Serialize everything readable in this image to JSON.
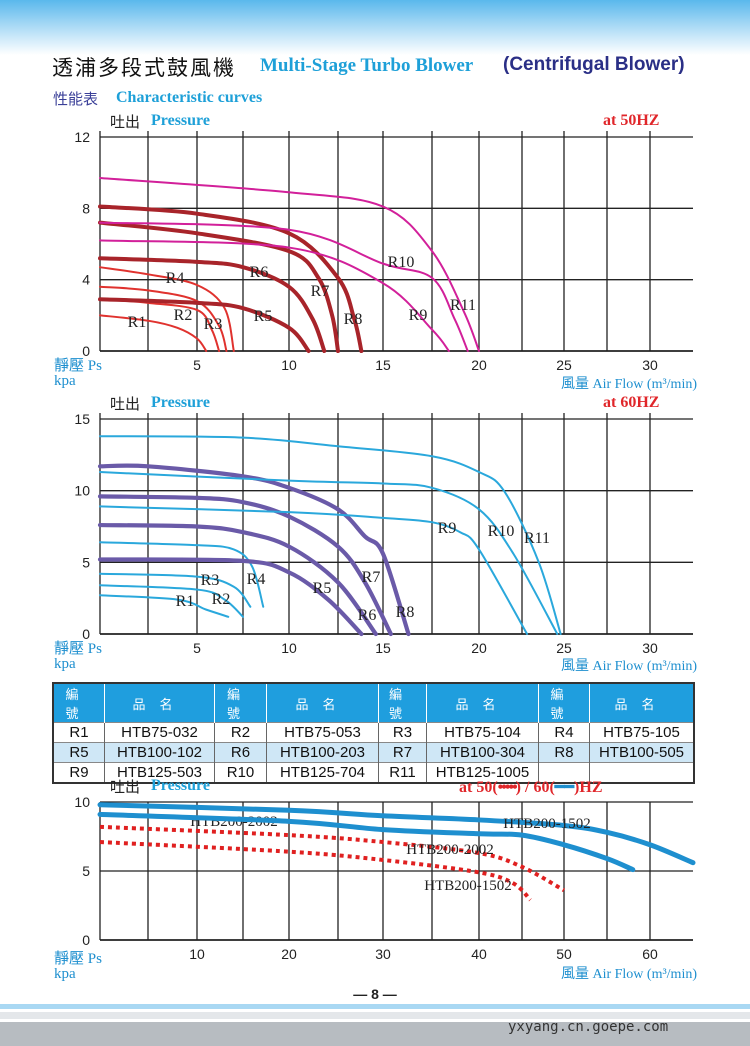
{
  "header": {
    "title_cn": "透浦多段式鼓風機",
    "title_en": "Multi-Stage Turbo Blower",
    "title_en2": "(Centrifugal Blower)",
    "subtitle_cn": "性能表",
    "subtitle_en": "Characteristic curves"
  },
  "axis_text": {
    "pressure_cn": "吐出",
    "pressure_en": "Pressure",
    "ps": "靜壓 Ps",
    "kpa": "kpa",
    "flow": "風量  Air Flow (m³/min)"
  },
  "chart_data": [
    {
      "type": "line",
      "title": "at 50HZ",
      "xlabel": "風量 Air Flow (m³/min)",
      "ylabel": "吐出 Pressure / 靜壓 Ps kpa",
      "xlim": [
        0,
        32.5
      ],
      "ylim": [
        0,
        12
      ],
      "xticks": [
        5,
        10,
        15,
        20,
        25,
        30
      ],
      "yticks": [
        0,
        4,
        8,
        12
      ],
      "grid": true,
      "series": [
        {
          "name": "R1",
          "color": "#e0322e",
          "weight": "thin",
          "points": [
            [
              0,
              2.0
            ],
            [
              2.5,
              1.7
            ],
            [
              4,
              1.3
            ],
            [
              5,
              0.7
            ],
            [
              5.5,
              0
            ]
          ]
        },
        {
          "name": "R2",
          "color": "#e0322e",
          "weight": "thin",
          "points": [
            [
              0,
              2.9
            ],
            [
              2.5,
              2.7
            ],
            [
              5,
              2.3
            ],
            [
              5.8,
              1.2
            ],
            [
              6.2,
              0
            ]
          ]
        },
        {
          "name": "R3",
          "color": "#e0322e",
          "weight": "thin",
          "points": [
            [
              0,
              3.6
            ],
            [
              2.5,
              3.4
            ],
            [
              5,
              2.8
            ],
            [
              6.2,
              1.4
            ],
            [
              6.6,
              0
            ]
          ]
        },
        {
          "name": "R4",
          "color": "#e0322e",
          "weight": "thin",
          "points": [
            [
              0,
              4.7
            ],
            [
              2.5,
              4.3
            ],
            [
              5,
              3.7
            ],
            [
              6.5,
              2.4
            ],
            [
              7.0,
              0
            ]
          ]
        },
        {
          "name": "R5",
          "color": "#a8242a",
          "weight": "thick",
          "points": [
            [
              0,
              2.9
            ],
            [
              5,
              2.7
            ],
            [
              7.5,
              2.4
            ],
            [
              10,
              1.3
            ],
            [
              11,
              0
            ]
          ]
        },
        {
          "name": "R6",
          "color": "#a8242a",
          "weight": "thick",
          "points": [
            [
              0,
              5.2
            ],
            [
              5,
              5.0
            ],
            [
              7.5,
              4.7
            ],
            [
              10,
              3.6
            ],
            [
              11.2,
              1.8
            ],
            [
              11.8,
              0
            ]
          ]
        },
        {
          "name": "R7",
          "color": "#a8242a",
          "weight": "thick",
          "points": [
            [
              0,
              7.2
            ],
            [
              5,
              6.6
            ],
            [
              10,
              5.6
            ],
            [
              11.5,
              4.1
            ],
            [
              12.2,
              2.0
            ],
            [
              12.5,
              0
            ]
          ]
        },
        {
          "name": "R8",
          "color": "#a8242a",
          "weight": "thick",
          "points": [
            [
              0,
              8.1
            ],
            [
              5,
              7.7
            ],
            [
              10,
              6.6
            ],
            [
              12.5,
              4.1
            ],
            [
              13.4,
              1.8
            ],
            [
              13.8,
              0
            ]
          ]
        },
        {
          "name": "R9",
          "color": "#d2209a",
          "weight": "thin",
          "points": [
            [
              0,
              6.2
            ],
            [
              10,
              5.8
            ],
            [
              15,
              3.8
            ],
            [
              17.5,
              1.2
            ],
            [
              18.4,
              0
            ]
          ]
        },
        {
          "name": "R10",
          "color": "#d2209a",
          "weight": "thin",
          "points": [
            [
              0,
              7.2
            ],
            [
              10,
              6.8
            ],
            [
              15,
              4.9
            ],
            [
              17.5,
              4.1
            ],
            [
              18.7,
              1.8
            ],
            [
              19.4,
              0
            ]
          ]
        },
        {
          "name": "R11",
          "color": "#d2209a",
          "weight": "thin",
          "points": [
            [
              0,
              9.7
            ],
            [
              10,
              8.9
            ],
            [
              15,
              8.1
            ],
            [
              17.5,
              5.6
            ],
            [
              19.2,
              2.2
            ],
            [
              20,
              0
            ]
          ]
        }
      ]
    },
    {
      "type": "line",
      "title": "at 60HZ",
      "xlabel": "風量 Air Flow (m³/min)",
      "ylabel": "吐出 Pressure / 靜壓 Ps kpa",
      "xlim": [
        0,
        32.5
      ],
      "ylim": [
        0,
        15
      ],
      "xticks": [
        5,
        10,
        15,
        20,
        25,
        30
      ],
      "yticks": [
        0,
        5,
        10,
        15
      ],
      "grid": true,
      "series": [
        {
          "name": "R1",
          "color": "#2aa8dc",
          "weight": "thin",
          "points": [
            [
              0,
              2.7
            ],
            [
              4,
              2.4
            ],
            [
              5.5,
              1.7
            ],
            [
              6.7,
              1.2
            ]
          ]
        },
        {
          "name": "R2",
          "color": "#2aa8dc",
          "weight": "thin",
          "points": [
            [
              0,
              3.4
            ],
            [
              5,
              3.1
            ],
            [
              6.5,
              2.4
            ],
            [
              7.5,
              1.2
            ]
          ]
        },
        {
          "name": "R3",
          "color": "#2aa8dc",
          "weight": "thin",
          "points": [
            [
              0,
              4.2
            ],
            [
              5,
              4.0
            ],
            [
              7,
              3.3
            ],
            [
              7.9,
              1.9
            ]
          ]
        },
        {
          "name": "R4",
          "color": "#2aa8dc",
          "weight": "thin",
          "points": [
            [
              0,
              6.4
            ],
            [
              5,
              6.2
            ],
            [
              7,
              5.9
            ],
            [
              8,
              4.7
            ],
            [
              8.6,
              1.9
            ]
          ]
        },
        {
          "name": "R5",
          "color": "#6a5aa8",
          "weight": "thick",
          "points": [
            [
              0,
              5.2
            ],
            [
              7.5,
              5.1
            ],
            [
              10,
              4.3
            ],
            [
              12,
              2.4
            ],
            [
              13.8,
              0
            ]
          ]
        },
        {
          "name": "R6",
          "color": "#6a5aa8",
          "weight": "thick",
          "points": [
            [
              0,
              7.6
            ],
            [
              5,
              7.5
            ],
            [
              7.5,
              7.1
            ],
            [
              10,
              6.1
            ],
            [
              12.5,
              3.6
            ],
            [
              14.6,
              0
            ]
          ]
        },
        {
          "name": "R7",
          "color": "#6a5aa8",
          "weight": "thick",
          "points": [
            [
              0,
              9.6
            ],
            [
              5,
              9.5
            ],
            [
              7.5,
              9.2
            ],
            [
              10,
              8.2
            ],
            [
              12.5,
              6.1
            ],
            [
              14,
              3.6
            ],
            [
              15.4,
              0
            ]
          ]
        },
        {
          "name": "R8",
          "color": "#6a5aa8",
          "weight": "thick",
          "points": [
            [
              0,
              11.7
            ],
            [
              2.5,
              11.7
            ],
            [
              7.5,
              11.0
            ],
            [
              10,
              10.2
            ],
            [
              12.5,
              8.7
            ],
            [
              14,
              6.8
            ],
            [
              15,
              5.6
            ],
            [
              16.3,
              0
            ]
          ]
        },
        {
          "name": "R9",
          "color": "#2aa8dc",
          "weight": "thin",
          "points": [
            [
              0,
              8.9
            ],
            [
              10,
              8.5
            ],
            [
              15,
              8.1
            ],
            [
              17.5,
              7.8
            ],
            [
              19,
              7.1
            ],
            [
              20,
              5.9
            ],
            [
              22.8,
              0
            ]
          ]
        },
        {
          "name": "R10",
          "color": "#2aa8dc",
          "weight": "thin",
          "points": [
            [
              0,
              11.3
            ],
            [
              10,
              10.7
            ],
            [
              15,
              10.5
            ],
            [
              17.5,
              10.2
            ],
            [
              20,
              8.7
            ],
            [
              22,
              5.6
            ],
            [
              24.6,
              0
            ]
          ]
        },
        {
          "name": "R11",
          "color": "#2aa8dc",
          "weight": "thin",
          "points": [
            [
              0,
              13.8
            ],
            [
              7.5,
              13.7
            ],
            [
              12.5,
              13.1
            ],
            [
              17.5,
              12.4
            ],
            [
              20,
              11.3
            ],
            [
              21.5,
              9.9
            ],
            [
              23.5,
              5
            ],
            [
              24.8,
              0
            ]
          ]
        }
      ]
    },
    {
      "type": "line",
      "title": "at 50(•••••) / 60(━━)HZ",
      "title_parts": [
        "at 50(",
        "•••••",
        ") / 60(",
        "━━",
        ")HZ"
      ],
      "xlabel": "風量 Air Flow (m³/min)",
      "ylabel": "吐出 Pressure / 靜壓 Ps kpa",
      "xlim": [
        0,
        65
      ],
      "ylim": [
        0,
        10
      ],
      "xticks": [
        10,
        20,
        30,
        40,
        50,
        60
      ],
      "yticks": [
        0,
        5,
        10
      ],
      "grid": true,
      "series": [
        {
          "name": "HTB200-2002",
          "freq": "60HZ",
          "color": "#1e8fcf",
          "style": "solid",
          "points": [
            [
              0,
              9.8
            ],
            [
              20,
              9.4
            ],
            [
              30,
              9.0
            ],
            [
              40,
              8.7
            ],
            [
              50,
              8.3
            ],
            [
              55,
              7.8
            ],
            [
              60,
              6.9
            ],
            [
              65,
              5.6
            ]
          ]
        },
        {
          "name": "HTB200-1502",
          "freq": "60HZ",
          "color": "#1e8fcf",
          "style": "solid",
          "points": [
            [
              0,
              9.1
            ],
            [
              20,
              8.6
            ],
            [
              30,
              8.0
            ],
            [
              40,
              7.7
            ],
            [
              45,
              7.6
            ],
            [
              50,
              6.9
            ],
            [
              55,
              5.9
            ],
            [
              58,
              5.1
            ]
          ]
        },
        {
          "name": "HTB200-2002",
          "freq": "50HZ",
          "color": "#e02020",
          "style": "dotted",
          "points": [
            [
              0,
              8.2
            ],
            [
              20,
              7.6
            ],
            [
              30,
              7.1
            ],
            [
              40,
              6.3
            ],
            [
              45,
              5.3
            ],
            [
              50,
              3.6
            ]
          ]
        },
        {
          "name": "HTB200-1502",
          "freq": "50HZ",
          "color": "#e02020",
          "style": "dotted",
          "points": [
            [
              0,
              7.1
            ],
            [
              20,
              6.4
            ],
            [
              30,
              5.8
            ],
            [
              40,
              4.9
            ],
            [
              44,
              4.1
            ],
            [
              46,
              2.9
            ]
          ]
        }
      ]
    }
  ],
  "model_table": {
    "headers": [
      "編號",
      "品名",
      "編號",
      "品名",
      "編號",
      "品名",
      "編號",
      "品名"
    ],
    "rows": [
      [
        "R1",
        "HTB75-032",
        "R2",
        "HTB75-053",
        "R3",
        "HTB75-104",
        "R4",
        "HTB75-105"
      ],
      [
        "R5",
        "HTB100-102",
        "R6",
        "HTB100-203",
        "R7",
        "HTB100-304",
        "R8",
        "HTB100-505"
      ],
      [
        "R9",
        "HTB125-503",
        "R10",
        "HTB125-704",
        "R11",
        "HTB125-1005",
        "",
        ""
      ]
    ]
  },
  "footer": {
    "page": "— 8 —",
    "watermark": "yxyang.cn.goepe.com"
  }
}
